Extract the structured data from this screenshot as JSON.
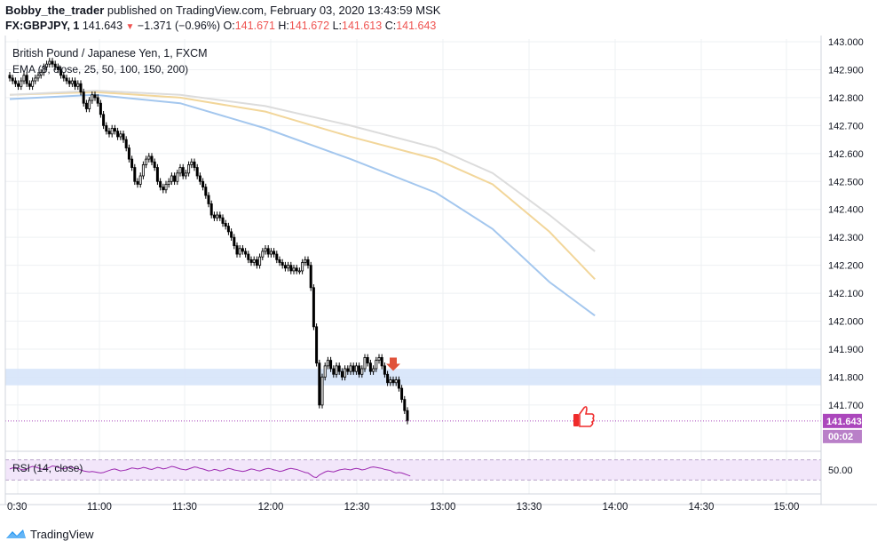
{
  "header": {
    "author": "Bobby_the_trader",
    "published_text": " published on TradingView.com, February 03, 2020 13:43:59 MSK",
    "symbol_line": {
      "symbol": "FX:GBPJPY, 1",
      "price": "141.643",
      "change": "−1.371 (−0.96%)",
      "o_label": "O:",
      "o": "141.671",
      "h_label": "H:",
      "h": "141.672",
      "l_label": "L:",
      "l": "141.613",
      "c_label": "C:",
      "c": "141.643"
    }
  },
  "footer": {
    "brand": "TradingView",
    "logo_icon": "tradingview-logo-icon"
  },
  "colors": {
    "candle": "#000000",
    "ema25": "#a4c7ee",
    "ema50": "#f2d69a",
    "ema100": "#dcdcdc",
    "zone": "#d6e4f9",
    "rsi_line": "#9c27b0",
    "rsi_band": "#f2e6fa",
    "signal_arrow": "#e0533b",
    "thumb_icon": "#ef2b2b",
    "last_price_bg": "#ab47bc"
  },
  "chart_data": [
    {
      "type": "candlestick",
      "title": "British Pound / Japanese Yen, 1, FXCM",
      "indicator": "EMA (8, close, 25, 50, 100, 150, 200)",
      "x_ticks": [
        "0:30",
        "11:00",
        "11:30",
        "12:00",
        "12:30",
        "13:00",
        "13:30",
        "14:00",
        "14:30",
        "15:00"
      ],
      "y_ticks": [
        "143.000",
        "142.900",
        "142.800",
        "142.700",
        "142.600",
        "142.500",
        "142.400",
        "142.300",
        "142.200",
        "142.100",
        "142.000",
        "141.900",
        "141.800",
        "141.700"
      ],
      "ylim": [
        141.62,
        143.02
      ],
      "last_price_label": "141.643",
      "countdown_label": "00:02",
      "close_series": {
        "start_time": "10:30",
        "interval_minutes": 1,
        "closes": [
          142.87,
          142.86,
          142.85,
          142.84,
          142.86,
          142.88,
          142.85,
          142.84,
          142.86,
          142.87,
          142.88,
          142.89,
          142.91,
          142.92,
          142.93,
          142.92,
          142.91,
          142.9,
          142.88,
          142.87,
          142.86,
          142.85,
          142.86,
          142.84,
          142.85,
          142.82,
          142.78,
          142.76,
          142.79,
          142.81,
          142.8,
          142.78,
          142.74,
          142.7,
          142.68,
          142.67,
          142.69,
          142.68,
          142.66,
          142.67,
          142.65,
          142.62,
          142.58,
          142.55,
          142.5,
          142.49,
          142.52,
          142.56,
          142.58,
          142.59,
          142.57,
          142.55,
          142.5,
          142.48,
          142.47,
          142.49,
          142.5,
          142.52,
          142.5,
          142.53,
          142.55,
          142.52,
          142.53,
          142.56,
          142.57,
          142.55,
          142.52,
          142.5,
          142.48,
          142.45,
          142.42,
          142.38,
          142.37,
          142.38,
          142.37,
          142.35,
          142.34,
          142.32,
          142.3,
          142.27,
          142.24,
          142.26,
          142.25,
          142.24,
          142.22,
          142.21,
          142.22,
          142.2,
          142.23,
          142.25,
          142.26,
          142.24,
          142.25,
          142.24,
          142.22,
          142.21,
          142.2,
          142.19,
          142.2,
          142.18,
          142.19,
          142.18,
          142.18,
          142.21,
          142.22,
          142.2,
          142.12,
          141.98,
          141.85,
          141.7,
          141.8,
          141.84,
          141.86,
          141.83,
          141.81,
          141.84,
          141.82,
          141.8,
          141.83,
          141.82,
          141.84,
          141.82,
          141.84,
          141.81,
          141.83,
          141.87,
          141.85,
          141.82,
          141.83,
          141.86,
          141.87,
          141.84,
          141.81,
          141.78,
          141.79,
          141.78,
          141.79,
          141.76,
          141.72,
          141.68,
          141.643
        ]
      },
      "horizontal_zone": [
        141.78,
        141.82
      ],
      "ema_series": [
        {
          "name": "EMA 25",
          "color": "#a4c7ee",
          "points": [
            [
              0,
              142.795
            ],
            [
              30,
              142.81
            ],
            [
              60,
              142.78
            ],
            [
              90,
              142.69
            ],
            [
              120,
              142.58
            ],
            [
              150,
              142.46
            ],
            [
              170,
              142.33
            ],
            [
              190,
              142.14
            ],
            [
              206,
              142.02
            ]
          ]
        },
        {
          "name": "EMA 50",
          "color": "#f2d69a",
          "points": [
            [
              0,
              142.81
            ],
            [
              30,
              142.82
            ],
            [
              60,
              142.8
            ],
            [
              90,
              142.75
            ],
            [
              120,
              142.66
            ],
            [
              150,
              142.58
            ],
            [
              170,
              142.49
            ],
            [
              190,
              142.32
            ],
            [
              206,
              142.15
            ]
          ]
        },
        {
          "name": "EMA 100",
          "color": "#dcdcdc",
          "points": [
            [
              0,
              142.81
            ],
            [
              30,
              142.825
            ],
            [
              60,
              142.81
            ],
            [
              90,
              142.77
            ],
            [
              120,
              142.7
            ],
            [
              150,
              142.62
            ],
            [
              170,
              142.53
            ],
            [
              190,
              142.38
            ],
            [
              206,
              142.25
            ]
          ]
        }
      ],
      "signal_arrow_at": [
        141.8
      ],
      "signal_arrow_icon": "red-down-arrow-icon",
      "thumb_icon": "thumbs-up-icon"
    },
    {
      "type": "line",
      "title": "RSI (14, close)",
      "y_ticks": [
        "50.00"
      ],
      "levels": [
        30,
        70
      ],
      "ylim": [
        20,
        80
      ],
      "values": [
        52,
        54,
        55,
        53,
        51,
        50,
        52,
        55,
        57,
        56,
        54,
        52,
        51,
        53,
        55,
        58,
        57,
        55,
        53,
        52,
        54,
        56,
        55,
        53,
        52,
        50,
        48,
        47,
        46,
        47,
        46,
        45,
        44,
        45,
        47,
        49,
        51,
        52,
        50,
        48,
        49,
        50,
        52,
        54,
        53,
        52,
        53,
        55,
        54,
        52,
        51,
        53,
        55,
        54,
        52,
        53,
        55,
        57,
        56,
        54,
        52,
        51,
        50,
        52,
        54,
        56,
        55,
        53,
        52,
        50,
        48,
        49,
        51,
        50,
        48,
        49,
        51,
        53,
        52,
        50,
        49,
        48,
        47,
        48,
        50,
        52,
        51,
        49,
        48,
        50,
        52,
        53,
        52,
        50,
        49,
        47,
        48,
        50,
        52,
        53,
        52,
        51,
        49,
        47,
        45,
        44,
        40,
        36,
        35,
        40,
        43,
        46,
        48,
        47,
        46,
        48,
        50,
        51,
        52,
        51,
        50,
        52,
        53,
        52,
        50,
        51,
        53,
        55,
        56,
        55,
        54,
        53,
        51,
        50,
        49,
        46,
        44,
        45,
        44,
        42,
        40,
        38
      ]
    }
  ]
}
